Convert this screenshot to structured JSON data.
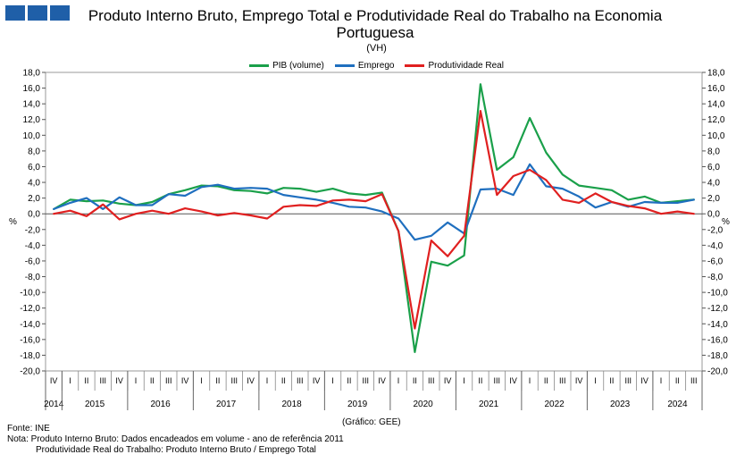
{
  "header": {
    "title": "Produto Interno Bruto, Emprego Total e Produtividade Real do Trabalho na Economia Portuguesa",
    "subtitle": "(VH)"
  },
  "colors": {
    "logo": "#1f5fa8"
  },
  "chart_data": {
    "type": "line",
    "ylim": [
      -20,
      18
    ],
    "yticks": [
      "18,0",
      "16,0",
      "14,0",
      "12,0",
      "10,0",
      "8,0",
      "6,0",
      "4,0",
      "2,0",
      "0,0",
      "-2,0",
      "-4,0",
      "-6,0",
      "-8,0",
      "-10,0",
      "-12,0",
      "-14,0",
      "-16,0",
      "-18,0",
      "-20,0"
    ],
    "y_unit_left": "%",
    "y_unit_right": "%",
    "quarters": [
      "IV",
      "I",
      "II",
      "III",
      "IV",
      "I",
      "II",
      "III",
      "IV",
      "I",
      "II",
      "III",
      "IV",
      "I",
      "II",
      "III",
      "IV",
      "I",
      "II",
      "III",
      "IV",
      "I",
      "II",
      "III",
      "IV",
      "I",
      "II",
      "III",
      "IV",
      "I",
      "II",
      "III",
      "IV",
      "I",
      "II",
      "III",
      "IV",
      "I",
      "II",
      "III"
    ],
    "years": [
      {
        "label": "2014",
        "start": 0,
        "end": 0
      },
      {
        "label": "2015",
        "start": 1,
        "end": 4
      },
      {
        "label": "2016",
        "start": 5,
        "end": 8
      },
      {
        "label": "2017",
        "start": 9,
        "end": 12
      },
      {
        "label": "2018",
        "start": 13,
        "end": 16
      },
      {
        "label": "2019",
        "start": 17,
        "end": 20
      },
      {
        "label": "2020",
        "start": 21,
        "end": 24
      },
      {
        "label": "2021",
        "start": 25,
        "end": 28
      },
      {
        "label": "2022",
        "start": 29,
        "end": 32
      },
      {
        "label": "2023",
        "start": 33,
        "end": 36
      },
      {
        "label": "2024",
        "start": 37,
        "end": 39
      }
    ],
    "series": [
      {
        "name": "PIB (volume)",
        "color": "#1aa04a",
        "values": [
          0.6,
          1.8,
          1.6,
          1.7,
          1.3,
          1.1,
          1.5,
          2.5,
          3.0,
          3.6,
          3.5,
          3.0,
          2.9,
          2.6,
          3.3,
          3.2,
          2.8,
          3.2,
          2.6,
          2.4,
          2.7,
          -2.2,
          -17.6,
          -6.1,
          -6.6,
          -5.3,
          16.5,
          5.6,
          7.2,
          12.2,
          7.8,
          5.0,
          3.6,
          3.3,
          3.0,
          1.8,
          2.2,
          1.4,
          1.6,
          1.8
        ]
      },
      {
        "name": "Emprego",
        "color": "#1f6fbf",
        "values": [
          0.6,
          1.4,
          2.0,
          0.6,
          2.1,
          1.1,
          1.1,
          2.5,
          2.3,
          3.4,
          3.7,
          3.2,
          3.3,
          3.2,
          2.4,
          2.1,
          1.8,
          1.4,
          0.9,
          0.8,
          0.3,
          -0.6,
          -3.3,
          -2.8,
          -1.1,
          -2.5,
          3.1,
          3.2,
          2.4,
          6.3,
          3.5,
          3.2,
          2.2,
          0.8,
          1.5,
          0.9,
          1.5,
          1.4,
          1.4,
          1.8
        ]
      },
      {
        "name": "Produtividade Real",
        "color": "#e02020",
        "values": [
          0.0,
          0.4,
          -0.3,
          1.2,
          -0.7,
          0.0,
          0.4,
          0.0,
          0.7,
          0.3,
          -0.2,
          0.1,
          -0.2,
          -0.6,
          0.9,
          1.1,
          1.0,
          1.7,
          1.8,
          1.6,
          2.5,
          -2.2,
          -14.6,
          -3.4,
          -5.4,
          -2.8,
          13.1,
          2.4,
          4.8,
          5.6,
          4.3,
          1.8,
          1.4,
          2.6,
          1.5,
          1.0,
          0.7,
          0.0,
          0.3,
          0.0
        ]
      }
    ]
  },
  "footer": {
    "graphic_source": "(Gráfico: GEE)",
    "source": "Fonte: INE",
    "note1": "Nota: Produto Interno Bruto: Dados encadeados em volume - ano de referência 2011",
    "note2": "Produtividade Real do Trabalho: Produto Interno Bruto / Emprego Total"
  }
}
